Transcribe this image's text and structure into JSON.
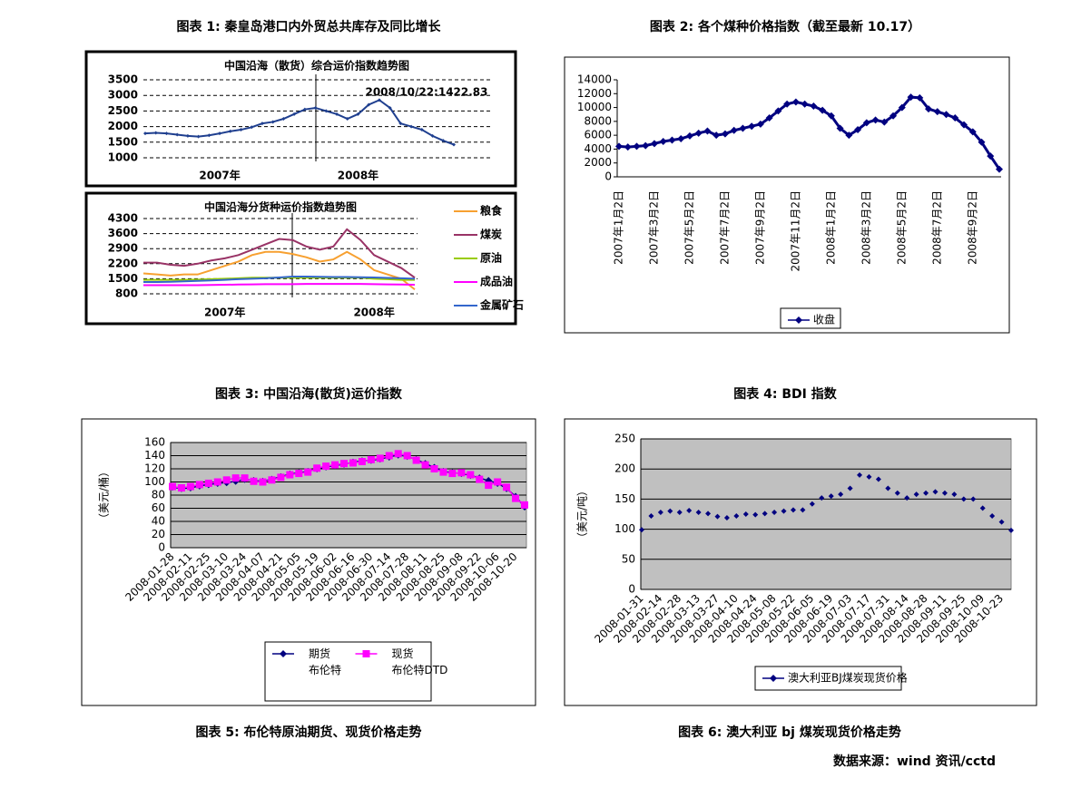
{
  "captions": [
    "图表 1: 秦皇岛港口内外贸总共库存及同比增长",
    "图表 2: 各个煤种价格指数（截至最新 10.17）",
    "图表 3: 中国沿海(散货)运价指数",
    "图表 4: BDI 指数",
    "图表 5: 布伦特原油期货、现货价格走势",
    "图表 6: 澳大利亚 bj 煤炭现货价格走势"
  ],
  "source": "数据来源：wind 资讯/cctd",
  "chart_data": [
    {
      "type": "line",
      "title": "中国沿海（散货）综合运价指数趋势图",
      "annotation": "2008/10/22:1422.83",
      "categories": [
        null,
        null,
        null,
        null,
        null,
        null,
        null,
        "2007年",
        null,
        null,
        null,
        null,
        null,
        null,
        null,
        null,
        null,
        null,
        null,
        null,
        "2008年",
        null,
        null,
        null,
        null,
        null,
        null,
        null,
        null,
        null
      ],
      "series": [
        {
          "name": null,
          "color": "#1f3f8f",
          "marker": "diamond",
          "values": [
            1780,
            1800,
            1780,
            1740,
            1700,
            1680,
            1720,
            1780,
            1850,
            1900,
            1980,
            2100,
            2150,
            2250,
            2400,
            2550,
            2600,
            2500,
            2400,
            2250,
            2400,
            2700,
            2850,
            2600,
            2100,
            2000,
            1900,
            1700,
            1550,
            1422.83
          ]
        }
      ],
      "ylim": [
        1000,
        3500
      ],
      "yticks": [
        1000,
        1500,
        2000,
        2500,
        3000,
        3500
      ],
      "grid": true
    },
    {
      "type": "line",
      "title": "中国沿海分货种运价指数趋势图",
      "categories": [
        null,
        null,
        null,
        null,
        null,
        null,
        "2007年",
        null,
        null,
        null,
        null,
        null,
        null,
        null,
        null,
        null,
        null,
        "2008年",
        null,
        null,
        null
      ],
      "series": [
        {
          "name": "粮食",
          "color": "#f7a030",
          "values": [
            1750,
            1700,
            1650,
            1700,
            1700,
            1900,
            2100,
            2300,
            2600,
            2750,
            2750,
            2650,
            2500,
            2300,
            2400,
            2750,
            2400,
            1900,
            1700,
            1500,
            1000
          ]
        },
        {
          "name": "煤炭",
          "color": "#993366",
          "values": [
            2250,
            2250,
            2150,
            2100,
            2200,
            2350,
            2450,
            2600,
            2850,
            3100,
            3350,
            3300,
            3000,
            2850,
            3000,
            3800,
            3300,
            2600,
            2300,
            2000,
            1550
          ]
        },
        {
          "name": "原油",
          "color": "#99cc00",
          "values": [
            1450,
            1450,
            1450,
            1450,
            1460,
            1480,
            1500,
            1520,
            1550,
            1550,
            1550,
            1550,
            1550,
            1550,
            1550,
            1550,
            1550,
            1500,
            1480,
            1450,
            1450
          ]
        },
        {
          "name": "成品油",
          "color": "#ff00ff",
          "values": [
            1200,
            1200,
            1200,
            1200,
            1200,
            1210,
            1220,
            1230,
            1240,
            1250,
            1250,
            1250,
            1260,
            1260,
            1260,
            1260,
            1260,
            1250,
            1240,
            1230,
            1220
          ]
        },
        {
          "name": "金属矿石",
          "color": "#3366cc",
          "values": [
            1350,
            1350,
            1360,
            1380,
            1400,
            1420,
            1450,
            1480,
            1500,
            1520,
            1560,
            1600,
            1600,
            1590,
            1580,
            1580,
            1570,
            1560,
            1540,
            1520,
            1500
          ]
        }
      ],
      "ylim": [
        800,
        4300
      ],
      "yticks": [
        800,
        1500,
        2200,
        2900,
        3600,
        4300
      ],
      "grid": true
    },
    {
      "type": "line",
      "categories": [
        "2007年1月2日",
        null,
        null,
        null,
        "2007年3月2日",
        null,
        null,
        null,
        "2007年5月2日",
        null,
        null,
        null,
        "2007年7月2日",
        null,
        null,
        null,
        "2007年9月2日",
        null,
        null,
        null,
        "2007年11月2日",
        null,
        null,
        null,
        "2008年1月2日",
        null,
        null,
        null,
        "2008年3月2日",
        null,
        null,
        null,
        "2008年5月2日",
        null,
        null,
        null,
        "2008年7月2日",
        null,
        null,
        null,
        "2008年9月2日",
        null,
        null,
        null
      ],
      "series": [
        {
          "name": "收盘",
          "color": "#000080",
          "marker": "diamond",
          "values": [
            4400,
            4300,
            4400,
            4500,
            4800,
            5100,
            5300,
            5500,
            5900,
            6300,
            6600,
            6000,
            6200,
            6700,
            7000,
            7300,
            7600,
            8500,
            9500,
            10500,
            10800,
            10500,
            10200,
            9600,
            8800,
            7000,
            6000,
            6800,
            7800,
            8200,
            7900,
            8800,
            10000,
            11500,
            11400,
            9800,
            9400,
            9000,
            8500,
            7500,
            6500,
            5000,
            3000,
            1100
          ]
        }
      ],
      "ylim": [
        0,
        14000
      ],
      "yticks": [
        0,
        2000,
        4000,
        6000,
        8000,
        10000,
        12000,
        14000
      ],
      "grid": false
    },
    {
      "type": "line",
      "ylabel": "（美元/桶）",
      "categories": [
        "2008-01-28",
        null,
        "2008-02-11",
        null,
        "2008-02-25",
        null,
        "2008-03-10",
        null,
        "2008-03-24",
        null,
        "2008-04-07",
        null,
        "2008-04-21",
        null,
        "2008-05-05",
        null,
        "2008-05-19",
        null,
        "2008-06-02",
        null,
        "2008-06-16",
        null,
        "2008-06-30",
        null,
        "2008-07-14",
        null,
        "2008-07-28",
        null,
        "2008-08-11",
        null,
        "2008-08-25",
        null,
        "2008-09-08",
        null,
        "2008-09-22",
        null,
        "2008-10-06",
        null,
        "2008-10-20",
        null
      ],
      "series": [
        {
          "name": "期货\n布伦特",
          "color": "#000080",
          "marker": "diamond",
          "values": [
            92,
            90,
            91,
            94,
            96,
            98,
            99,
            101,
            104,
            102,
            101,
            104,
            108,
            112,
            114,
            116,
            120,
            123,
            125,
            127,
            130,
            132,
            133,
            135,
            138,
            141,
            139,
            134,
            128,
            122,
            116,
            114,
            113,
            110,
            106,
            102,
            98,
            90,
            78,
            62
          ]
        },
        {
          "name": "现货\n布伦特DTD",
          "color": "#ff00ff",
          "marker": "square",
          "values": [
            93,
            91,
            93,
            96,
            98,
            100,
            103,
            106,
            106,
            101,
            100,
            103,
            107,
            111,
            113,
            115,
            121,
            124,
            126,
            128,
            129,
            131,
            134,
            136,
            140,
            143,
            140,
            133,
            126,
            120,
            115,
            113,
            114,
            111,
            104,
            95,
            100,
            92,
            75,
            65
          ]
        }
      ],
      "ylim": [
        0,
        160
      ],
      "yticks": [
        0,
        20,
        40,
        60,
        80,
        100,
        120,
        140,
        160
      ],
      "grid": true,
      "plot_background": "#c0c0c0"
    },
    {
      "type": "line",
      "ylabel": "（美元/吨）",
      "categories": [
        "2008-01-31",
        null,
        "2008-02-14",
        null,
        "2008-02-28",
        null,
        "2008-03-13",
        null,
        "2008-03-27",
        null,
        "2008-04-10",
        null,
        "2008-04-24",
        null,
        "2008-05-08",
        null,
        "2008-05-22",
        null,
        "2008-06-05",
        null,
        "2008-06-19",
        null,
        "2008-07-03",
        null,
        "2008-07-17",
        null,
        "2008-07-31",
        null,
        "2008-08-14",
        null,
        "2008-08-28",
        null,
        "2008-09-11",
        null,
        "2008-09-25",
        null,
        "2008-10-09",
        null,
        "2008-10-23",
        null
      ],
      "series": [
        {
          "name": "澳大利亚BJ煤炭现货价格",
          "color": "#000080",
          "marker": "diamond",
          "line": false,
          "values": [
            99,
            122,
            128,
            130,
            128,
            131,
            128,
            126,
            121,
            119,
            122,
            125,
            124,
            126,
            128,
            130,
            132,
            132,
            142,
            152,
            155,
            158,
            168,
            190,
            187,
            183,
            168,
            160,
            152,
            158,
            160,
            162,
            160,
            158,
            150,
            150,
            135,
            122,
            112,
            98
          ]
        }
      ],
      "ylim": [
        0,
        250
      ],
      "yticks": [
        0,
        50,
        100,
        150,
        200,
        250
      ],
      "grid": true,
      "plot_background": "#c0c0c0"
    }
  ]
}
